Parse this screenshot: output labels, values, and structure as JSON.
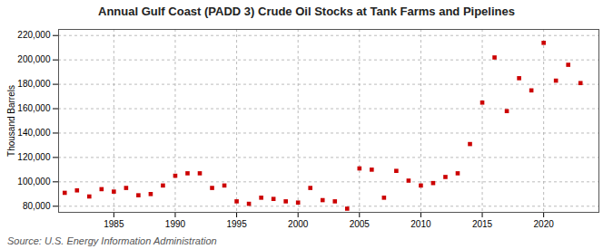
{
  "chart_data": {
    "type": "scatter",
    "title": "Annual Gulf Coast (PADD 3) Crude Oil Stocks at Tank Farms and Pipelines",
    "ylabel": "Thousand Barrels",
    "annotation": "Source: U.S. Energy Information Administration",
    "x": [
      1981,
      1982,
      1983,
      1984,
      1985,
      1986,
      1987,
      1988,
      1989,
      1990,
      1991,
      1992,
      1993,
      1994,
      1995,
      1996,
      1997,
      1998,
      1999,
      2000,
      2001,
      2002,
      2003,
      2004,
      2005,
      2006,
      2007,
      2008,
      2009,
      2010,
      2011,
      2012,
      2013,
      2014,
      2015,
      2016,
      2017,
      2018,
      2019,
      2020,
      2021,
      2022,
      2023
    ],
    "values": [
      91000,
      93000,
      88000,
      94000,
      92000,
      95000,
      89000,
      90000,
      97000,
      105000,
      107000,
      107000,
      95000,
      97000,
      84000,
      82000,
      87000,
      86000,
      84000,
      83000,
      95000,
      85000,
      84000,
      78000,
      111000,
      110000,
      87000,
      109000,
      101000,
      97000,
      99000,
      104000,
      107000,
      131000,
      165000,
      202000,
      158000,
      185000,
      175000,
      214000,
      183000,
      196000,
      181000
    ],
    "color": "#cc0000",
    "marker": "square",
    "xlim": [
      1980.5,
      2024.5
    ],
    "xticks": [
      1985,
      1990,
      1995,
      2000,
      2005,
      2010,
      2015,
      2020
    ],
    "ylim": [
      75000,
      225000
    ],
    "yticks": [
      {
        "value": 80000,
        "label": "80,000"
      },
      {
        "value": 100000,
        "label": "100,000"
      },
      {
        "value": 120000,
        "label": "120,000"
      },
      {
        "value": 140000,
        "label": "140,000"
      },
      {
        "value": 160000,
        "label": "160,000"
      },
      {
        "value": 180000,
        "label": "180,000"
      },
      {
        "value": 200000,
        "label": "200,000"
      },
      {
        "value": 220000,
        "label": "220,000"
      }
    ],
    "grid": true
  }
}
